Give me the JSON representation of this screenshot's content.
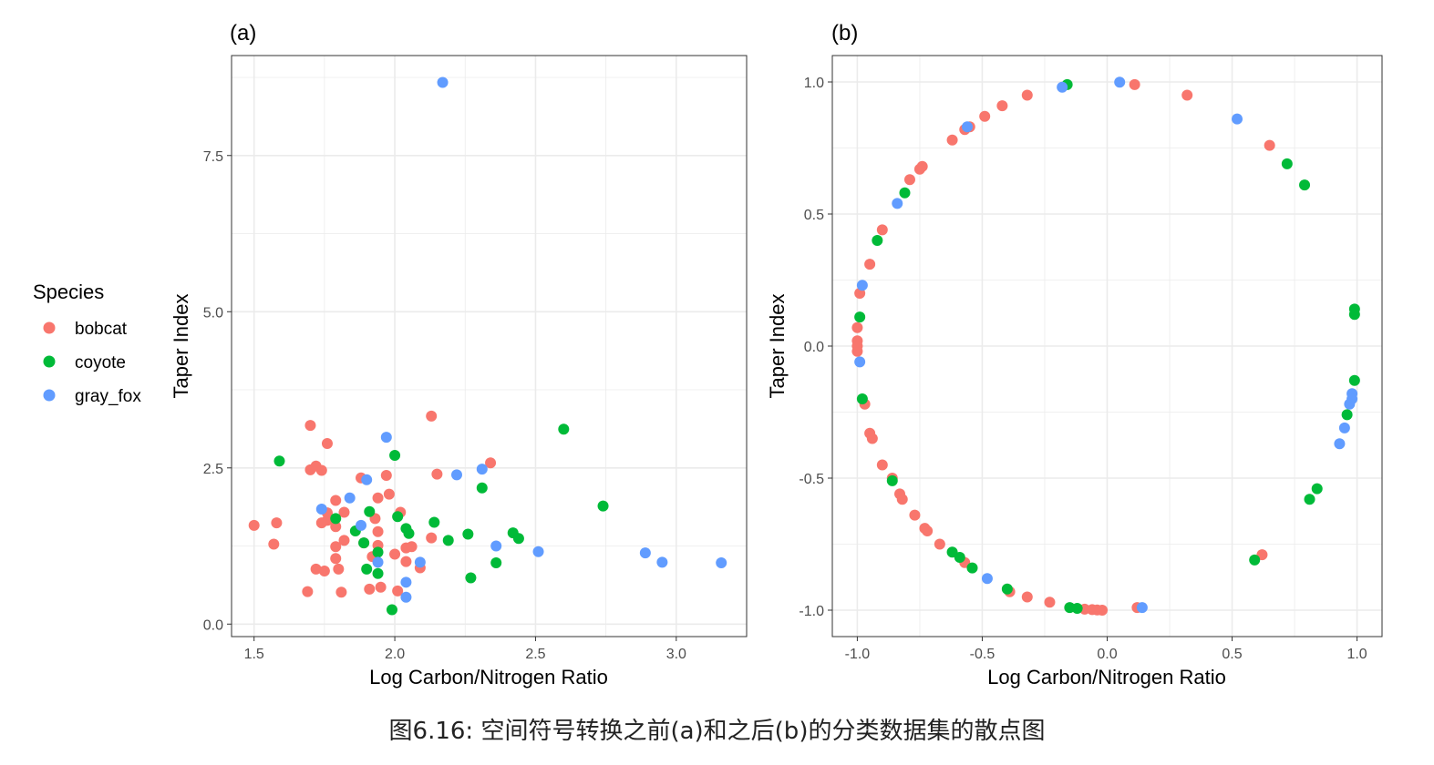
{
  "colors": {
    "bobcat": "#F8766D",
    "coyote": "#00BA38",
    "gray_fox": "#619CFF",
    "grid": "#EBEBEB",
    "axis_text": "#4D4D4D",
    "panel_border": "#333333"
  },
  "legend": {
    "title": "Species",
    "placement": "left",
    "entries": [
      "bobcat",
      "coyote",
      "gray_fox"
    ]
  },
  "caption": "图6.16: 空间符号转换之前(a)和之后(b)的分类数据集的散点图",
  "chart_data": [
    {
      "type": "scatter",
      "panel_label": "(a)",
      "xlabel": "Log Carbon/Nitrogen Ratio",
      "ylabel": "Taper Index",
      "xlim": [
        1.42,
        3.25
      ],
      "ylim": [
        -0.2,
        9.1
      ],
      "xticks": [
        1.5,
        2.0,
        2.5,
        3.0
      ],
      "xtick_labels": [
        "1.5",
        "2.0",
        "2.5",
        "3.0"
      ],
      "yticks": [
        0.0,
        2.5,
        5.0,
        7.5
      ],
      "ytick_labels": [
        "0.0",
        "2.5",
        "5.0",
        "7.5"
      ],
      "grid": true,
      "series": [
        {
          "name": "bobcat",
          "points": [
            [
              1.5,
              1.58
            ],
            [
              1.58,
              1.62
            ],
            [
              1.57,
              1.28
            ],
            [
              1.7,
              3.18
            ],
            [
              1.7,
              2.47
            ],
            [
              1.72,
              2.53
            ],
            [
              1.74,
              2.46
            ],
            [
              1.76,
              2.89
            ],
            [
              1.76,
              1.78
            ],
            [
              1.74,
              1.62
            ],
            [
              1.76,
              1.66
            ],
            [
              1.72,
              0.88
            ],
            [
              1.75,
              0.85
            ],
            [
              1.69,
              0.52
            ],
            [
              1.79,
              1.98
            ],
            [
              1.79,
              1.56
            ],
            [
              1.79,
              1.24
            ],
            [
              1.79,
              1.05
            ],
            [
              1.8,
              0.88
            ],
            [
              1.81,
              0.51
            ],
            [
              1.82,
              1.79
            ],
            [
              1.82,
              1.34
            ],
            [
              1.88,
              2.34
            ],
            [
              1.89,
              1.3
            ],
            [
              1.91,
              0.56
            ],
            [
              1.92,
              1.08
            ],
            [
              1.93,
              1.69
            ],
            [
              1.94,
              2.02
            ],
            [
              1.94,
              1.48
            ],
            [
              1.94,
              1.26
            ],
            [
              1.95,
              0.59
            ],
            [
              1.97,
              2.38
            ],
            [
              1.98,
              2.08
            ],
            [
              2.0,
              1.12
            ],
            [
              2.01,
              0.53
            ],
            [
              2.02,
              1.79
            ],
            [
              2.04,
              1.0
            ],
            [
              2.04,
              1.22
            ],
            [
              2.06,
              1.24
            ],
            [
              2.09,
              0.9
            ],
            [
              2.13,
              3.33
            ],
            [
              2.13,
              1.38
            ],
            [
              2.15,
              2.4
            ],
            [
              2.34,
              2.58
            ]
          ]
        },
        {
          "name": "coyote",
          "points": [
            [
              1.59,
              2.61
            ],
            [
              1.79,
              1.69
            ],
            [
              1.86,
              1.49
            ],
            [
              1.89,
              1.3
            ],
            [
              1.9,
              0.88
            ],
            [
              1.91,
              1.8
            ],
            [
              1.94,
              1.15
            ],
            [
              1.94,
              0.81
            ],
            [
              1.99,
              0.23
            ],
            [
              2.0,
              2.7
            ],
            [
              2.01,
              1.72
            ],
            [
              2.04,
              1.53
            ],
            [
              2.05,
              1.45
            ],
            [
              2.14,
              1.63
            ],
            [
              2.19,
              1.34
            ],
            [
              2.26,
              1.44
            ],
            [
              2.27,
              0.74
            ],
            [
              2.31,
              2.18
            ],
            [
              2.36,
              0.98
            ],
            [
              2.42,
              1.46
            ],
            [
              2.44,
              1.37
            ],
            [
              2.6,
              3.12
            ],
            [
              2.74,
              1.89
            ]
          ]
        },
        {
          "name": "gray_fox",
          "points": [
            [
              1.74,
              1.84
            ],
            [
              1.84,
              2.02
            ],
            [
              1.88,
              1.58
            ],
            [
              1.9,
              2.31
            ],
            [
              1.94,
              0.99
            ],
            [
              1.97,
              2.99
            ],
            [
              2.04,
              0.67
            ],
            [
              2.04,
              0.43
            ],
            [
              2.09,
              0.99
            ],
            [
              2.17,
              8.67
            ],
            [
              2.22,
              2.39
            ],
            [
              2.31,
              2.48
            ],
            [
              2.36,
              1.25
            ],
            [
              2.51,
              1.16
            ],
            [
              2.89,
              1.14
            ],
            [
              2.95,
              0.99
            ],
            [
              3.16,
              0.98
            ]
          ]
        }
      ]
    },
    {
      "type": "scatter",
      "panel_label": "(b)",
      "xlabel": "Log Carbon/Nitrogen Ratio",
      "ylabel": "Taper Index",
      "xlim": [
        -1.1,
        1.1
      ],
      "ylim": [
        -1.1,
        1.1
      ],
      "xticks": [
        -1.0,
        -0.5,
        0.0,
        0.5,
        1.0
      ],
      "xtick_labels": [
        "-1.0",
        "-0.5",
        "0.0",
        "0.5",
        "1.0"
      ],
      "yticks": [
        -1.0,
        -0.5,
        0.0,
        0.5,
        1.0
      ],
      "ytick_labels": [
        "-1.0",
        "-0.5",
        "0.0",
        "0.5",
        "1.0"
      ],
      "grid": true,
      "series": [
        {
          "name": "bobcat",
          "points": [
            [
              0.11,
              0.99
            ],
            [
              0.32,
              0.95
            ],
            [
              0.65,
              0.76
            ],
            [
              -0.32,
              0.95
            ],
            [
              -0.42,
              0.91
            ],
            [
              -0.49,
              0.87
            ],
            [
              -0.55,
              0.83
            ],
            [
              -0.57,
              0.82
            ],
            [
              -0.62,
              0.78
            ],
            [
              -0.74,
              0.68
            ],
            [
              -0.75,
              0.67
            ],
            [
              -0.79,
              0.63
            ],
            [
              -0.9,
              0.44
            ],
            [
              -0.95,
              0.31
            ],
            [
              -0.99,
              0.2
            ],
            [
              -1.0,
              0.07
            ],
            [
              -1.0,
              0.02
            ],
            [
              -1.0,
              0.0
            ],
            [
              -1.0,
              -0.02
            ],
            [
              -0.97,
              -0.22
            ],
            [
              -0.95,
              -0.33
            ],
            [
              -0.94,
              -0.35
            ],
            [
              -0.9,
              -0.45
            ],
            [
              -0.86,
              -0.5
            ],
            [
              -0.83,
              -0.56
            ],
            [
              -0.82,
              -0.58
            ],
            [
              -0.77,
              -0.64
            ],
            [
              -0.73,
              -0.69
            ],
            [
              -0.72,
              -0.7
            ],
            [
              -0.67,
              -0.75
            ],
            [
              -0.57,
              -0.82
            ],
            [
              -0.39,
              -0.93
            ],
            [
              -0.32,
              -0.95
            ],
            [
              -0.23,
              -0.97
            ],
            [
              -0.09,
              -0.996
            ],
            [
              -0.06,
              -0.998
            ],
            [
              -0.04,
              -0.999
            ],
            [
              -0.02,
              -1.0
            ],
            [
              0.12,
              -0.99
            ],
            [
              0.62,
              -0.79
            ]
          ]
        },
        {
          "name": "coyote",
          "points": [
            [
              -0.16,
              0.99
            ],
            [
              -0.81,
              0.58
            ],
            [
              -0.92,
              0.4
            ],
            [
              -0.99,
              0.11
            ],
            [
              -0.98,
              -0.2
            ],
            [
              -0.86,
              -0.51
            ],
            [
              -0.62,
              -0.78
            ],
            [
              -0.59,
              -0.8
            ],
            [
              -0.54,
              -0.84
            ],
            [
              -0.4,
              -0.92
            ],
            [
              -0.15,
              -0.99
            ],
            [
              -0.12,
              -0.993
            ],
            [
              0.72,
              0.69
            ],
            [
              0.79,
              0.61
            ],
            [
              0.99,
              0.14
            ],
            [
              0.99,
              0.12
            ],
            [
              0.99,
              -0.13
            ],
            [
              0.96,
              -0.26
            ],
            [
              0.84,
              -0.54
            ],
            [
              0.81,
              -0.58
            ],
            [
              0.59,
              -0.81
            ]
          ]
        },
        {
          "name": "gray_fox",
          "points": [
            [
              -0.18,
              0.98
            ],
            [
              0.05,
              0.999
            ],
            [
              0.52,
              0.86
            ],
            [
              -0.84,
              0.54
            ],
            [
              -0.56,
              0.83
            ],
            [
              -0.98,
              0.23
            ],
            [
              -0.99,
              -0.06
            ],
            [
              -0.48,
              -0.88
            ],
            [
              0.14,
              -0.99
            ],
            [
              0.98,
              -0.18
            ],
            [
              0.98,
              -0.2
            ],
            [
              0.97,
              -0.22
            ],
            [
              0.95,
              -0.31
            ],
            [
              0.93,
              -0.37
            ]
          ]
        }
      ]
    }
  ]
}
